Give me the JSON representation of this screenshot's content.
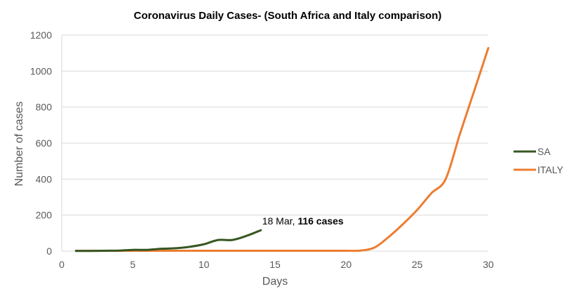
{
  "chart_data": {
    "type": "line",
    "title": "Coronavirus Daily Cases- (South Africa and Italy comparison)",
    "xlabel": "Days",
    "ylabel": "Number of cases",
    "xlim": [
      0,
      30
    ],
    "ylim": [
      0,
      1200
    ],
    "xticks": [
      0,
      5,
      10,
      15,
      20,
      25,
      30
    ],
    "yticks": [
      0,
      200,
      400,
      600,
      800,
      1000,
      1200
    ],
    "grid": "horizontal",
    "legend_position": "right",
    "series": [
      {
        "name": "SA",
        "color": "#375623",
        "x": [
          1,
          2,
          3,
          4,
          5,
          6,
          7,
          8,
          9,
          10,
          11,
          12,
          13,
          14
        ],
        "y": [
          1,
          1,
          2,
          3,
          7,
          7,
          13,
          16,
          24,
          38,
          62,
          62,
          85,
          116
        ]
      },
      {
        "name": "ITALY",
        "color": "#ED7D31",
        "x": [
          1,
          2,
          3,
          4,
          5,
          6,
          7,
          8,
          9,
          10,
          11,
          12,
          13,
          14,
          15,
          16,
          17,
          18,
          19,
          20,
          21,
          22,
          23,
          24,
          25,
          26,
          27,
          28,
          29,
          30
        ],
        "y": [
          2,
          2,
          2,
          2,
          2,
          2,
          2,
          2,
          2,
          2,
          2,
          2,
          2,
          2,
          2,
          2,
          2,
          2,
          2,
          2,
          3,
          20,
          79,
          150,
          229,
          322,
          400,
          650,
          888,
          1128
        ]
      }
    ],
    "annotation": {
      "x": 14,
      "y": 116,
      "prefix": "18 Mar, ",
      "bold": "116 cases"
    }
  }
}
